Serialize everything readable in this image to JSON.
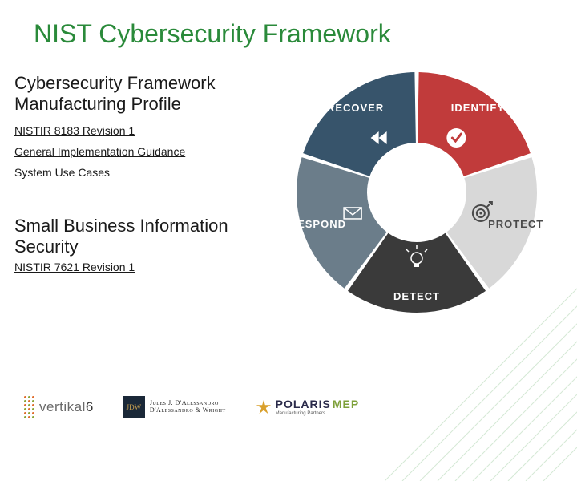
{
  "title": "NIST Cybersecurity Framework",
  "title_color": "#2a8a3a",
  "text_color": "#1a1a1a",
  "section1": {
    "heading": "Cybersecurity Framework Manufacturing Profile",
    "link1": "NISTIR 8183 Revision 1",
    "link2": "General Implementation Guidance",
    "plain": "System Use Cases"
  },
  "section2": {
    "heading": "Small Business Information Security",
    "link": "NISTIR 7621 Revision 1"
  },
  "wheel": {
    "segments": [
      {
        "label": "IDENTIFY",
        "color": "#c13b3b",
        "icon": "check"
      },
      {
        "label": "PROTECT",
        "color": "#d8d8d8",
        "icon": "target",
        "label_dark": true
      },
      {
        "label": "DETECT",
        "color": "#3a3a3a",
        "icon": "bulb"
      },
      {
        "label": "RESPOND",
        "color": "#6b7d8a",
        "icon": "envelope"
      },
      {
        "label": "RECOVER",
        "color": "#37546b",
        "icon": "rewind"
      }
    ],
    "center_color": "#ffffff",
    "gap_color": "#ffffff"
  },
  "footer": {
    "vertikal": {
      "text_a": "vertikal",
      "text_b": "6",
      "dot_colors": [
        "#e06c2c",
        "#8aa63a",
        "#e06c2c",
        "#8aa63a",
        "#e06c2c",
        "#8aa63a"
      ]
    },
    "jjd": {
      "mono": "JDW",
      "line1": "Jules J. D'Alessandro",
      "line2": "D'Alessandro & Wright"
    },
    "polaris": {
      "big": "POLARIS",
      "mep": "MEP",
      "small": "Manufacturing Partners"
    }
  },
  "deco_color": "#59a65a"
}
